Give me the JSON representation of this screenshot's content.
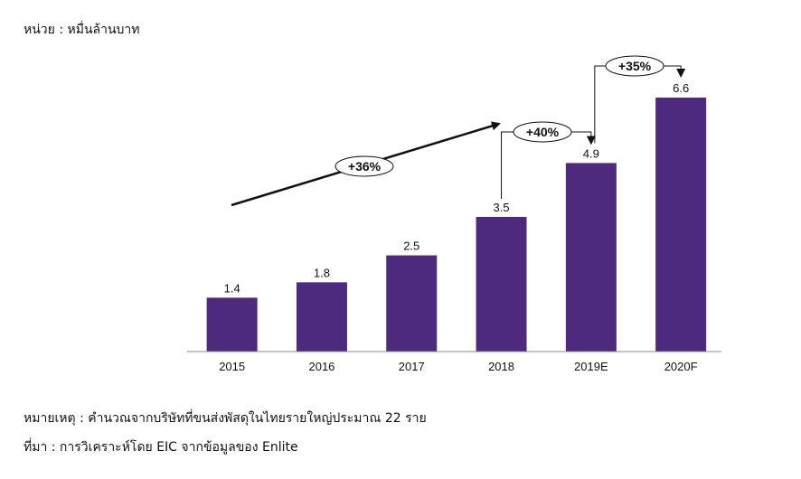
{
  "unit_label": "หน่วย : หมื่นล้านบาท",
  "note": "หมายเหตุ : คำนวณจากบริษัทที่ขนส่งพัสดุในไทยรายใหญ่ประมาณ 22 ราย",
  "source": "ที่มา : การวิเคราะห์โดย EIC จากข้อมูลของ Enlite",
  "chart_data": {
    "type": "bar",
    "categories": [
      "2015",
      "2016",
      "2017",
      "2018",
      "2019E",
      "2020F"
    ],
    "values": [
      1.4,
      1.8,
      2.5,
      3.5,
      4.9,
      6.6
    ],
    "value_labels": [
      "1.4",
      "1.8",
      "2.5",
      "3.5",
      "4.9",
      "6.6"
    ],
    "ylim": [
      0,
      6.6
    ],
    "bar_color": "#4e2a7e",
    "grid": false,
    "annotations": [
      {
        "text": "+36%",
        "type": "trend-arrow",
        "from": "2015",
        "to": "2018"
      },
      {
        "text": "+40%",
        "type": "growth-bracket",
        "from": "2018",
        "to": "2019E"
      },
      {
        "text": "+35%",
        "type": "growth-bracket",
        "from": "2019E",
        "to": "2020F"
      }
    ]
  }
}
